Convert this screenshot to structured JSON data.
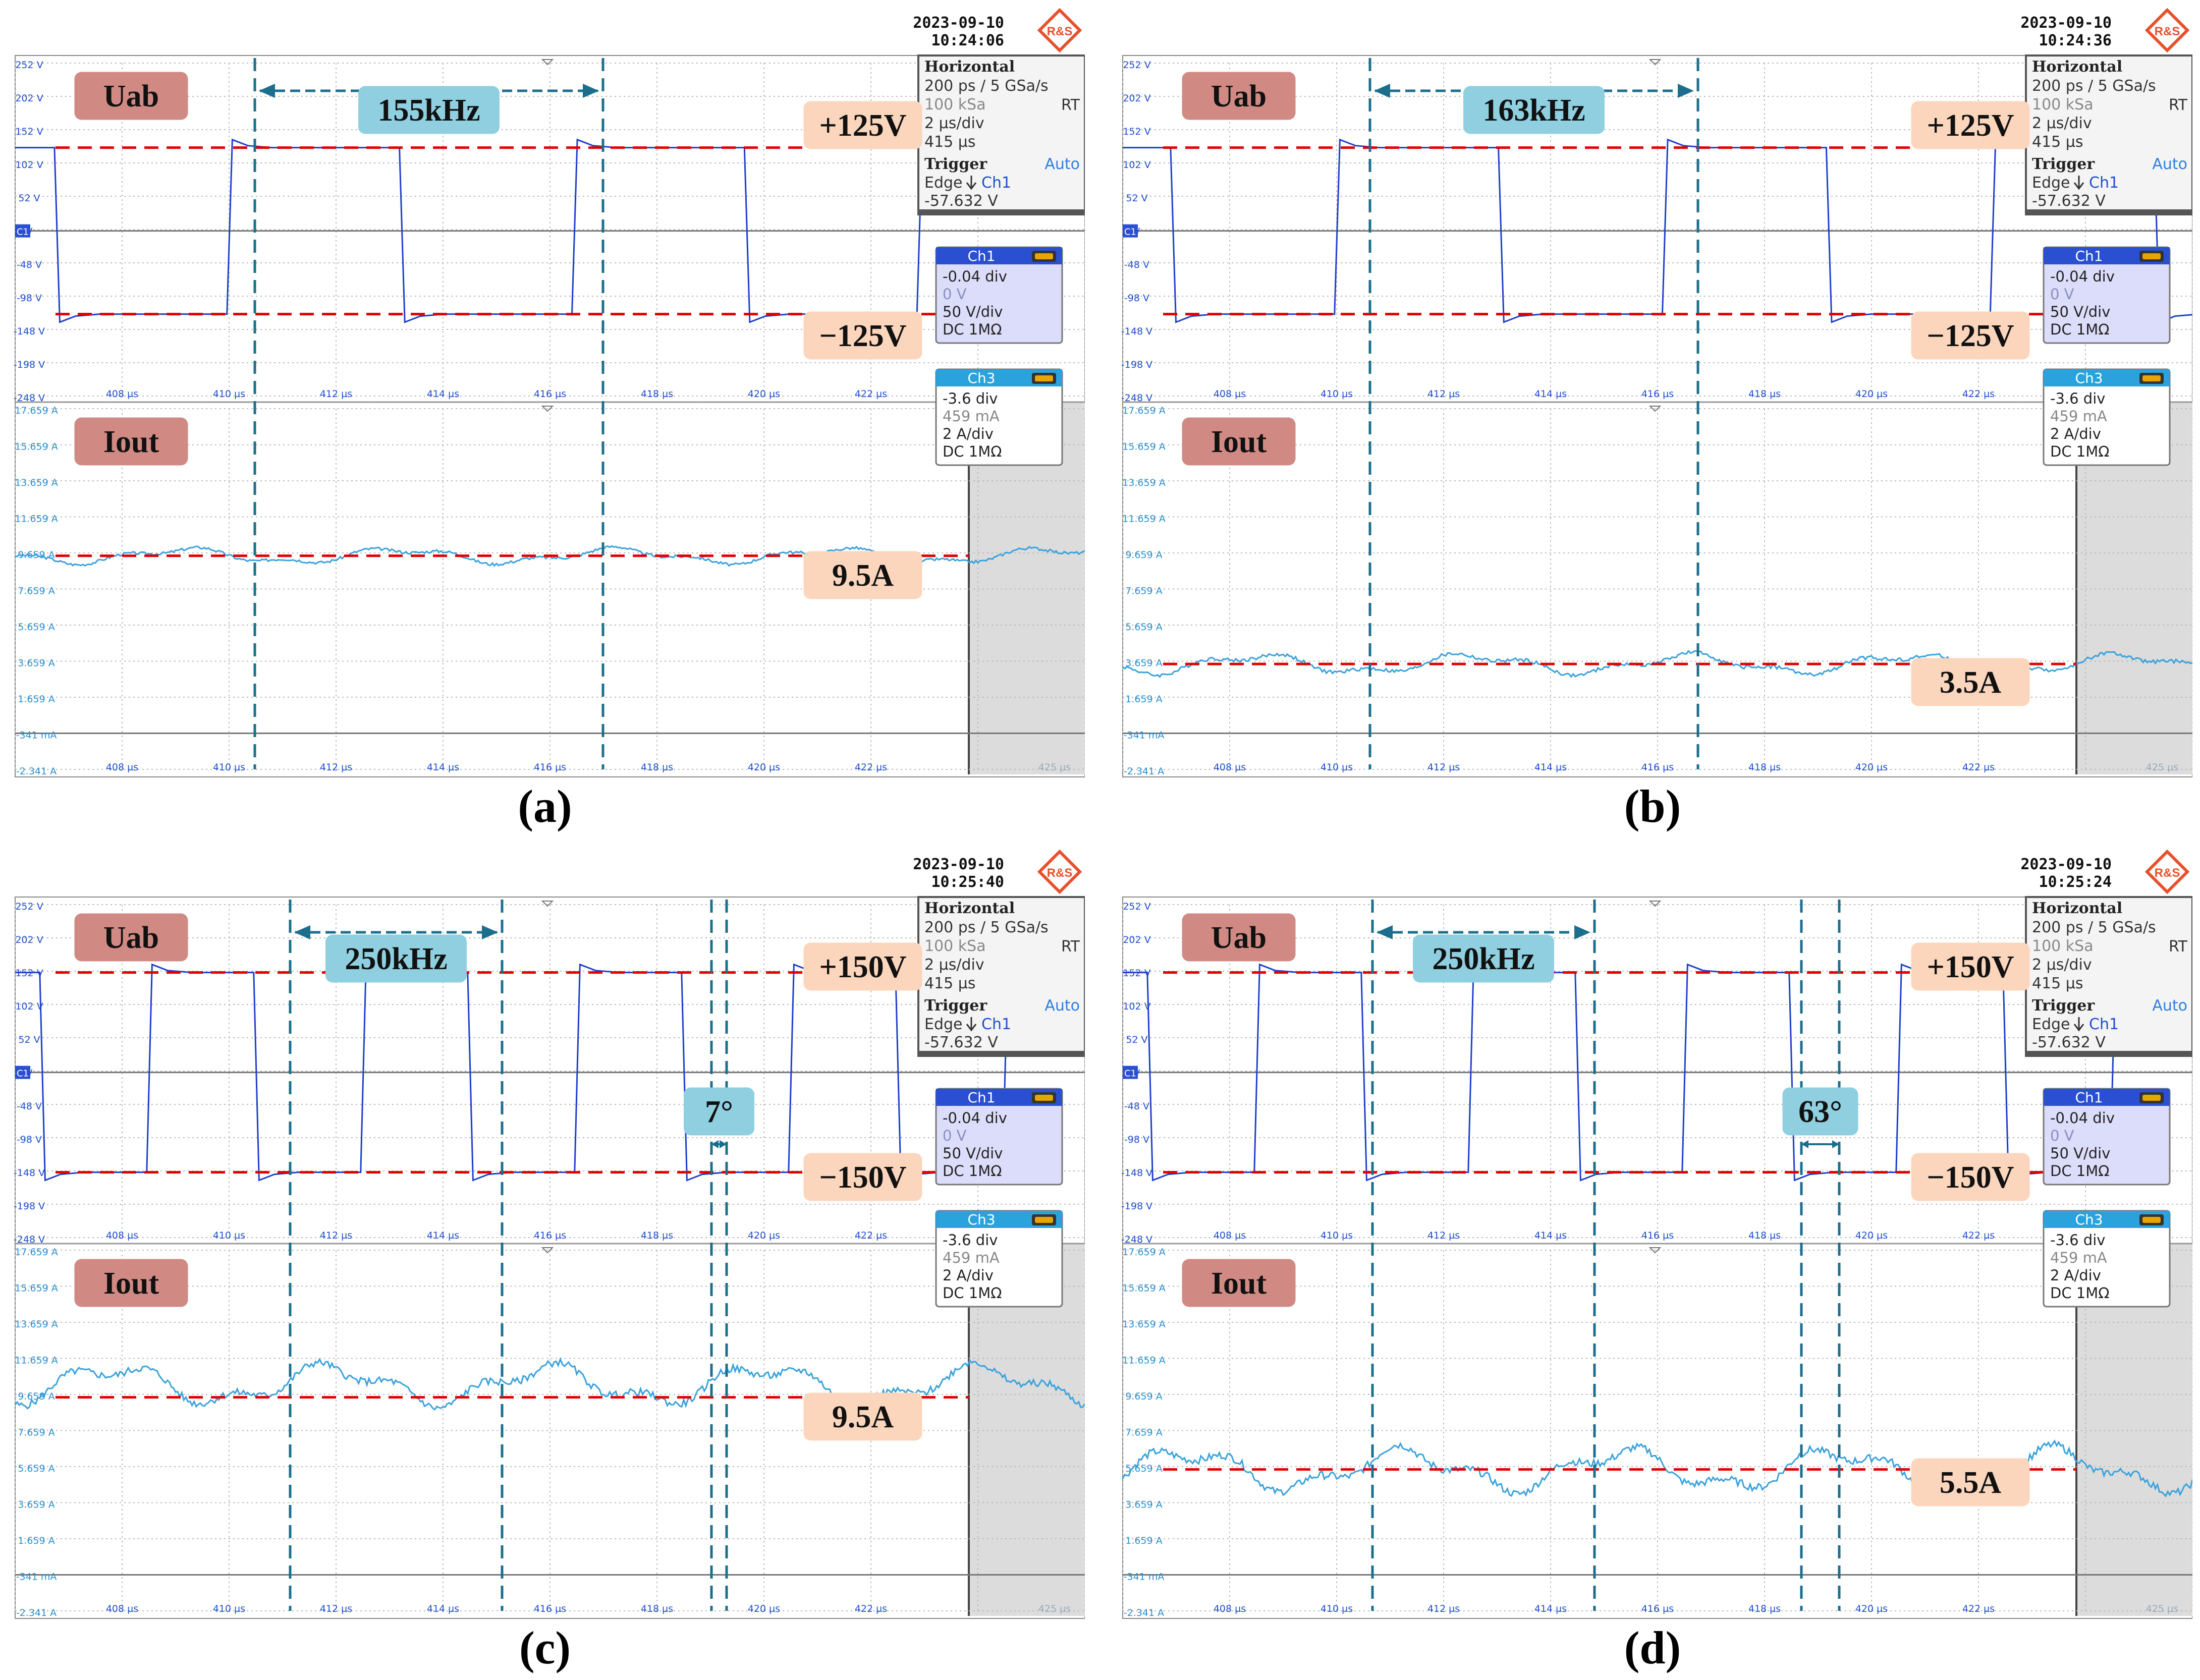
{
  "panels": [
    {
      "caption": "(b)",
      "date": "2023-09-10",
      "time": "10:24:36",
      "freq_label": "163kHz",
      "phase_label": "",
      "vpos_label": "+125V",
      "vneg_label": "−125V",
      "iout_label": "3.5A"
    },
    {
      "caption": "(d)",
      "date": "2023-09-10",
      "time": "10:25:24",
      "freq_label": "250kHz",
      "phase_label": "63°",
      "vpos_label": "+150V",
      "vneg_label": "−150V",
      "iout_label": "5.5A"
    }
  ],
  "scope_common": {
    "brand_logo": "R&S",
    "uab_label": "Uab",
    "iout_name": "Iout",
    "horizontal": {
      "title": "Horizontal",
      "lines": [
        "200 ps / 5 GSa/s",
        "100 kSa",
        "2 µs/div",
        "415 µs"
      ],
      "rt": "RT"
    },
    "trigger": {
      "title": "Trigger",
      "mode": "Auto",
      "edge": "Edge",
      "source": "Ch1",
      "level": "-57.632 V"
    },
    "ch1": {
      "title": "Ch1",
      "lines": [
        "-0.04 div",
        "0 V",
        "50 V/div",
        "DC 1MΩ"
      ]
    },
    "ch3": {
      "title": "Ch3",
      "lines": [
        "-3.6 div",
        "459 mA",
        "2 A/div",
        "DC 1MΩ"
      ]
    },
    "ch1_marker": "C1",
    "voltage_ticks": [
      "252 V",
      "202 V",
      "152 V",
      "102 V",
      "52 V",
      "V",
      "-48 V",
      "-98 V",
      "-148 V",
      "-198 V",
      "-248 V"
    ],
    "current_ticks": [
      "17.659 A",
      "15.659 A",
      "13.659 A",
      "11.659 A",
      "9.659 A",
      "7.659 A",
      "5.659 A",
      "3.659 A",
      "1.659 A",
      "-341 mA",
      "-2.341 A"
    ],
    "time_ticks": [
      "408 µs",
      "410 µs",
      "412 µs",
      "414 µs",
      "416 µs",
      "418 µs",
      "420 µs",
      "422 µs",
      "425 µs"
    ]
  },
  "chart_data": [
    {
      "panel": "(a)",
      "type": "line",
      "x_unit": "µs",
      "xlim": [
        406,
        426
      ],
      "series": [
        {
          "name": "Uab",
          "unit": "V",
          "period_us": 6.45,
          "levels_v": [
            125,
            -125
          ]
        },
        {
          "name": "Iout",
          "unit": "A",
          "mean_a": 9.5
        }
      ]
    },
    {
      "panel": "(b)",
      "type": "line",
      "x_unit": "µs",
      "xlim": [
        406,
        426
      ],
      "series": [
        {
          "name": "Uab",
          "unit": "V",
          "period_us": 6.13,
          "levels_v": [
            125,
            -125
          ]
        },
        {
          "name": "Iout",
          "unit": "A",
          "mean_a": 3.5
        }
      ]
    },
    {
      "panel": "(c)",
      "type": "line",
      "x_unit": "µs",
      "xlim": [
        406,
        426
      ],
      "series": [
        {
          "name": "Uab",
          "unit": "V",
          "period_us": 4.0,
          "levels_v": [
            150,
            -150
          ],
          "phase_shift_deg": 7
        },
        {
          "name": "Iout",
          "unit": "A",
          "mean_a": 9.5
        }
      ]
    },
    {
      "panel": "(d)",
      "type": "line",
      "x_unit": "µs",
      "xlim": [
        406,
        426
      ],
      "series": [
        {
          "name": "Uab",
          "unit": "V",
          "period_us": 4.0,
          "levels_v": [
            150,
            -150
          ],
          "phase_shift_deg": 63
        },
        {
          "name": "Iout",
          "unit": "A",
          "mean_a": 5.5
        }
      ]
    }
  ]
}
